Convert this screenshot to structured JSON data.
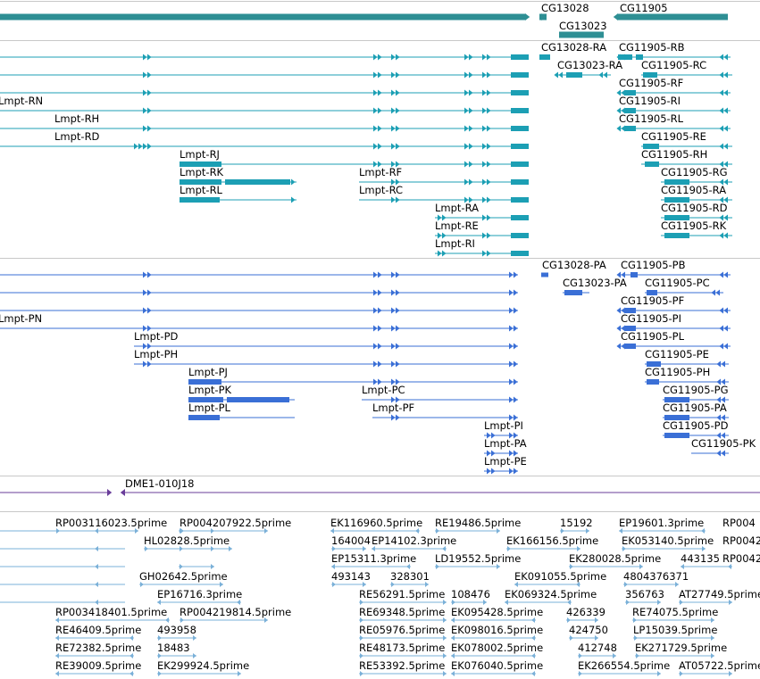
{
  "tracks": {
    "gene_span": {
      "color": "#2e8f94",
      "labels": [
        "CG13028",
        "CG13023",
        "CG11905"
      ]
    },
    "transcripts": {
      "color": "#1c9fb4",
      "labels": [
        "CG13028-RA",
        "CG11905-RB",
        "CG13023-RA",
        "CG11905-RC",
        "CG11905-RF",
        "Lmpt-RN",
        "CG11905-RI",
        "Lmpt-RH",
        "CG11905-RL",
        "Lmpt-RD",
        "CG11905-RE",
        "Lmpt-RJ",
        "CG11905-RH",
        "Lmpt-RK",
        "Lmpt-RF",
        "CG11905-RG",
        "Lmpt-RL",
        "Lmpt-RC",
        "CG11905-RA",
        "Lmpt-RA",
        "CG11905-RD",
        "Lmpt-RE",
        "CG11905-RK",
        "Lmpt-RI"
      ]
    },
    "proteins": {
      "color": "#3a6fd6",
      "labels": [
        "CG13028-PA",
        "CG11905-PB",
        "CG13023-PA",
        "CG11905-PC",
        "CG11905-PF",
        "Lmpt-PN",
        "CG11905-PI",
        "Lmpt-PD",
        "CG11905-PL",
        "Lmpt-PH",
        "CG11905-PE",
        "Lmpt-PJ",
        "CG11905-PH",
        "Lmpt-PK",
        "Lmpt-PC",
        "CG11905-PG",
        "Lmpt-PL",
        "Lmpt-PF",
        "CG11905-PA",
        "Lmpt-PI",
        "CG11905-PD",
        "Lmpt-PA",
        "CG11905-PK",
        "Lmpt-PE"
      ]
    },
    "clones": {
      "color": "#6a3d9a",
      "labels": [
        "DME1-010J18"
      ]
    },
    "ests": {
      "color": "#7ab0d8",
      "labels": [
        "RP003116023.5prime",
        "RP004207922.5prime",
        "EK116960.5prime",
        "RE19486.5prime",
        "15192",
        "EP19601.3prime",
        "RP004",
        "HL02828.5prime",
        "164004",
        "EP14102.3prime",
        "EK166156.5prime",
        "EK053140.5prime",
        "RP0042",
        "EP15311.3prime",
        "LD19552.5prime",
        "EK280028.5prime",
        "443135",
        "RP0042",
        "493143",
        "328301",
        "EK091055.5prime",
        "4804376371",
        "GH02642.5prime",
        "EP16716.3prime",
        "RE56291.5prime",
        "108476",
        "EK069324.5prime",
        "356763",
        "AT27749.5prime",
        "RP003418401.5prime",
        "RP004219814.5prime",
        "RE69348.5prime",
        "EK095428.5prime",
        "426339",
        "RE74075.5prime",
        "RE46409.5prime",
        "493958",
        "RE05976.5prime",
        "EK098016.5prime",
        "424750",
        "LP15039.5prime",
        "RE72382.5prime",
        "18483",
        "RE48173.5prime",
        "EK078002.5prime",
        "412748",
        "EK271729.5prime",
        "RE39009.5prime",
        "EK299924.5prime",
        "RE53392.5prime",
        "EK076040.5prime",
        "EK266554.5prime",
        "AT05722.5prime"
      ]
    }
  }
}
